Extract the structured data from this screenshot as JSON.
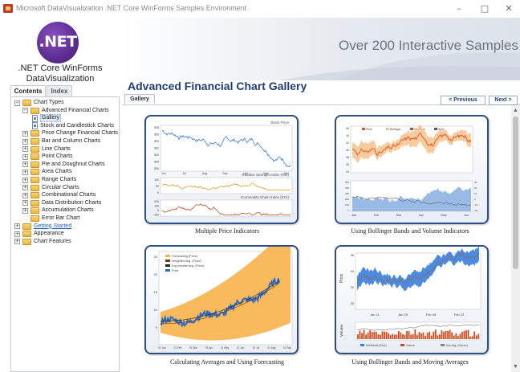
{
  "window": {
    "title": "Microsoft DataVisualization .NET Core WinForms Samples Environment",
    "minimize": "–",
    "maximize": "□",
    "close": "✕"
  },
  "header": {
    "logo_text": ".NET",
    "logo_line1": ".NET Core WinForms",
    "logo_line2": "DataVisualization",
    "slogan": "Over 200 Interactive Samples",
    "brand_color": "#5c2d91"
  },
  "sidebar": {
    "tabs": [
      {
        "label": "Contents",
        "active": true
      },
      {
        "label": "Index",
        "active": false
      }
    ],
    "tree": [
      {
        "label": "Chart Types",
        "level": 0,
        "expander": "−",
        "icon": "folder-icon"
      },
      {
        "label": "Advanced Financial Charts",
        "level": 1,
        "expander": "−",
        "icon": "folder-icon"
      },
      {
        "label": "Gallery",
        "level": 2,
        "expander": "",
        "icon": "document-icon",
        "selected": true
      },
      {
        "label": "Stock and Candlestick Charts",
        "level": 2,
        "expander": "",
        "icon": "document-icon"
      },
      {
        "label": "Price Change Financial Charts",
        "level": 1,
        "expander": "+",
        "icon": "folder-icon"
      },
      {
        "label": "Bar and Column Charts",
        "level": 1,
        "expander": "+",
        "icon": "folder-icon"
      },
      {
        "label": "Line Charts",
        "level": 1,
        "expander": "+",
        "icon": "folder-icon"
      },
      {
        "label": "Point Charts",
        "level": 1,
        "expander": "+",
        "icon": "folder-icon"
      },
      {
        "label": "Pie and Doughnut Charts",
        "level": 1,
        "expander": "+",
        "icon": "folder-icon"
      },
      {
        "label": "Area Charts",
        "level": 1,
        "expander": "+",
        "icon": "folder-icon"
      },
      {
        "label": "Range Charts",
        "level": 1,
        "expander": "+",
        "icon": "folder-icon"
      },
      {
        "label": "Circular Charts",
        "level": 1,
        "expander": "+",
        "icon": "folder-icon"
      },
      {
        "label": "Combinational Charts",
        "level": 1,
        "expander": "+",
        "icon": "folder-icon"
      },
      {
        "label": "Data Distribution Charts",
        "level": 1,
        "expander": "+",
        "icon": "folder-icon"
      },
      {
        "label": "Accumulation Charts",
        "level": 1,
        "expander": "+",
        "icon": "folder-icon"
      },
      {
        "label": "Error Bar Chart",
        "level": 1,
        "expander": "",
        "icon": "folder-icon"
      },
      {
        "label": "Getting Started",
        "level": 0,
        "expander": "+",
        "icon": "folder-icon",
        "link": true
      },
      {
        "label": "Appearance",
        "level": 0,
        "expander": "+",
        "icon": "folder-icon"
      },
      {
        "label": "Chart Features",
        "level": 0,
        "expander": "+",
        "icon": "folder-icon"
      }
    ]
  },
  "main": {
    "title": "Advanced Financial Chart Gallery",
    "tab_label": "Gallery",
    "previous_label": "< Previous",
    "next_label": "Next >",
    "accent_color": "#1f3f74",
    "cards": [
      {
        "caption": "Multiple Price Indicators",
        "panel1_title": "Stock Price",
        "panel2_title": "Relative Strength Index (RSI)",
        "panel3_title": "Commodity Chain Index (CCI)",
        "y1_ticks": [
          "$38",
          "$36",
          "$34",
          "$32",
          "$30",
          "$28",
          "$26"
        ],
        "y2_ticks": [
          "100",
          "50",
          "0"
        ],
        "y3_ticks": [
          "200",
          "100",
          "0",
          "-100"
        ],
        "x_ticks": [
          "Jun",
          "Jul",
          "Aug",
          "Sep",
          "Oct",
          "Nov",
          "Dec"
        ]
      },
      {
        "caption": "Using Bollinger Bands and Volume Indicators",
        "legend": [
          "Price",
          "Bollinger",
          "Dividend",
          "Split"
        ],
        "legend2": [
          "Volume",
          "Price/Vol Trend"
        ],
        "y1_ticks": [
          "46",
          "44",
          "42",
          "40",
          "38",
          "36",
          "34"
        ],
        "y2_left_ticks": [
          "500",
          "400",
          "300",
          "200",
          "100",
          "0"
        ],
        "y2_right_ticks": [
          "30",
          "20",
          "10",
          "0",
          "-10",
          "-20"
        ],
        "x_ticks": [
          "Jan",
          "Feb",
          "Mar",
          "Apr",
          "May",
          "Jun"
        ]
      },
      {
        "caption": "Calculating Averages and Using Forecasting",
        "legend": [
          "Forecasting (Price)",
          "Weighted Avg. (Price)",
          "Exponential Avg. (Price)",
          "Price"
        ],
        "y_ticks": [
          "25",
          "20",
          "15",
          "10",
          "5"
        ],
        "x_ticks": [
          "01 Jan",
          "01 Feb",
          "01 Mar",
          "01 Apr",
          "01 May",
          "01 Jun",
          "01 Jul",
          "01 Aug",
          "01 Sep"
        ]
      },
      {
        "caption": "Using Bollinger Bands and Moving Averages",
        "y_label": "Price",
        "y2_label": "Volume",
        "y_ticks": [
          "36",
          "34",
          "32",
          "30"
        ],
        "x_ticks": [
          "Jan 11",
          "Jan 25",
          "Feb 08",
          "Feb 22"
        ],
        "legend": [
          "Boll.Bands (Price)",
          "Volume",
          "Mov.Avg. (Volume)"
        ]
      }
    ]
  }
}
